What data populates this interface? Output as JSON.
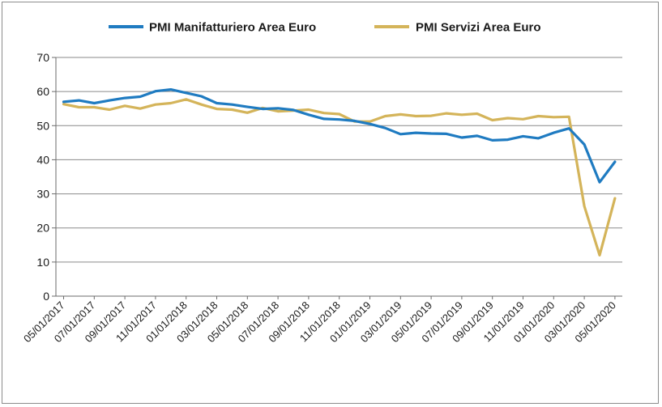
{
  "chart_data": {
    "type": "line",
    "title": "",
    "xlabel": "",
    "ylabel": "",
    "ylim": [
      0,
      70
    ],
    "yticks": [
      0,
      10,
      20,
      30,
      40,
      50,
      60,
      70
    ],
    "grid": "horizontal",
    "legend_position": "top",
    "x_tick_labels": [
      "05/01/2017",
      "07/01/2017",
      "09/01/2017",
      "11/01/2017",
      "01/01/2018",
      "03/01/2018",
      "05/01/2018",
      "07/01/2018",
      "09/01/2018",
      "11/01/2018",
      "01/01/2019",
      "03/01/2019",
      "05/01/2019",
      "07/01/2019",
      "09/01/2019",
      "11/01/2019",
      "01/01/2020",
      "03/01/2020",
      "05/01/2020"
    ],
    "x": [
      "2017-05",
      "2017-06",
      "2017-07",
      "2017-08",
      "2017-09",
      "2017-10",
      "2017-11",
      "2017-12",
      "2018-01",
      "2018-02",
      "2018-03",
      "2018-04",
      "2018-05",
      "2018-06",
      "2018-07",
      "2018-08",
      "2018-09",
      "2018-10",
      "2018-11",
      "2018-12",
      "2019-01",
      "2019-02",
      "2019-03",
      "2019-04",
      "2019-05",
      "2019-06",
      "2019-07",
      "2019-08",
      "2019-09",
      "2019-10",
      "2019-11",
      "2019-12",
      "2020-01",
      "2020-02",
      "2020-03",
      "2020-04",
      "2020-05"
    ],
    "series": [
      {
        "name": "PMI Manifatturiero Area Euro",
        "color": "#1f7bc1",
        "values": [
          57.0,
          57.4,
          56.6,
          57.4,
          58.1,
          58.5,
          60.1,
          60.6,
          59.6,
          58.6,
          56.6,
          56.2,
          55.5,
          54.9,
          55.1,
          54.6,
          53.2,
          52.0,
          51.8,
          51.4,
          50.5,
          49.3,
          47.5,
          47.9,
          47.7,
          47.6,
          46.5,
          47.0,
          45.7,
          45.9,
          46.9,
          46.3,
          47.9,
          49.2,
          44.5,
          33.4,
          39.4
        ]
      },
      {
        "name": "PMI Servizi Area Euro",
        "color": "#d4b45a",
        "values": [
          56.3,
          55.4,
          55.4,
          54.7,
          55.8,
          55.0,
          56.2,
          56.6,
          57.7,
          56.2,
          54.9,
          54.7,
          53.8,
          55.2,
          54.2,
          54.4,
          54.7,
          53.7,
          53.4,
          51.2,
          51.2,
          52.8,
          53.3,
          52.8,
          52.9,
          53.6,
          53.2,
          53.5,
          51.6,
          52.2,
          51.9,
          52.8,
          52.5,
          52.6,
          26.4,
          12.0,
          28.7
        ]
      }
    ]
  }
}
